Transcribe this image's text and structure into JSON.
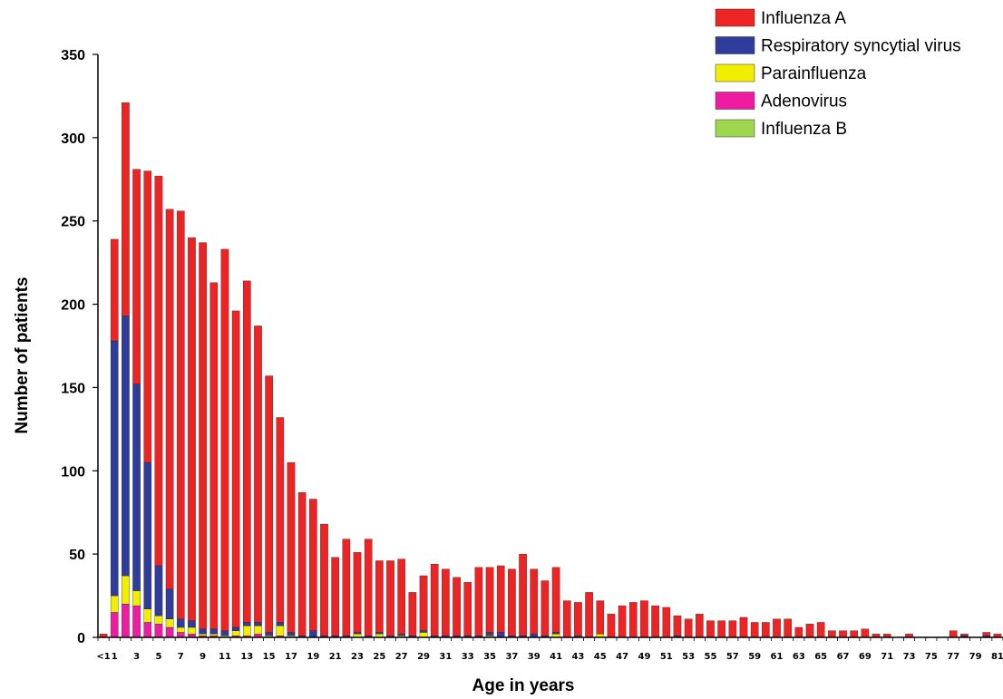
{
  "chart_data": {
    "type": "bar",
    "stacked": true,
    "title": "",
    "xlabel": "Age in years",
    "ylabel": "Number of patients",
    "ylim": [
      0,
      350
    ],
    "yticks": [
      "0",
      "50",
      "100",
      "150",
      "200",
      "250",
      "300",
      "350"
    ],
    "legend_position": "top-right",
    "categories": [
      "<1",
      "1",
      "2",
      "3",
      "4",
      "5",
      "6",
      "7",
      "8",
      "9",
      "10",
      "11",
      "12",
      "13",
      "14",
      "15",
      "16",
      "17",
      "18",
      "19",
      "20",
      "21",
      "22",
      "23",
      "24",
      "25",
      "26",
      "27",
      "28",
      "29",
      "30",
      "31",
      "32",
      "33",
      "34",
      "35",
      "36",
      "37",
      "38",
      "39",
      "40",
      "41",
      "42",
      "43",
      "44",
      "45",
      "46",
      "47",
      "48",
      "49",
      "50",
      "51",
      "52",
      "53",
      "54",
      "55",
      "56",
      "57",
      "58",
      "59",
      "60",
      "61",
      "62",
      "63",
      "64",
      "65",
      "66",
      "67",
      "68",
      "69",
      "70",
      "71",
      "72",
      "73",
      "74",
      "75",
      "76",
      "77",
      "78",
      "79",
      "80",
      "81"
    ],
    "x_tick_labels": [
      "<1",
      "1",
      "3",
      "5",
      "7",
      "9",
      "11",
      "13",
      "15",
      "17",
      "19",
      "21",
      "23",
      "25",
      "27",
      "29",
      "31",
      "33",
      "35",
      "37",
      "39",
      "41",
      "43",
      "45",
      "47",
      "49",
      "51",
      "53",
      "55",
      "57",
      "59",
      "61",
      "63",
      "65",
      "67",
      "69",
      "71",
      "73",
      "75",
      "77",
      "79",
      "81"
    ],
    "series": [
      {
        "name": "Adenovirus",
        "color": "#ee1ca1",
        "values": [
          0,
          15,
          20,
          19,
          9,
          8,
          6,
          3,
          2,
          1,
          1,
          0,
          1,
          1,
          2,
          0,
          1,
          0,
          0,
          0,
          0,
          0,
          0,
          0,
          0,
          0,
          0,
          0,
          0,
          0,
          0,
          0,
          0,
          0,
          0,
          0,
          0,
          0,
          0,
          0,
          0,
          0,
          0,
          0,
          0,
          0,
          0,
          0,
          0,
          0,
          0,
          0,
          0,
          0,
          0,
          0,
          0,
          0,
          0,
          0,
          0,
          0,
          0,
          0,
          0,
          0,
          0,
          0,
          0,
          0,
          0,
          0,
          0,
          0,
          0,
          0,
          0,
          0,
          0,
          0,
          0,
          0
        ]
      },
      {
        "name": "Parainfluenza",
        "color": "#f2ee00",
        "values": [
          0,
          10,
          17,
          9,
          8,
          5,
          5,
          3,
          4,
          1,
          1,
          1,
          3,
          6,
          5,
          1,
          6,
          1,
          0,
          0,
          0,
          0,
          0,
          2,
          0,
          2,
          0,
          1,
          0,
          3,
          0,
          0,
          0,
          0,
          0,
          1,
          0,
          0,
          0,
          0,
          0,
          2,
          0,
          0,
          0,
          2,
          0,
          0,
          0,
          0,
          0,
          0,
          0,
          0,
          0,
          0,
          0,
          0,
          0,
          0,
          0,
          0,
          0,
          0,
          0,
          0,
          0,
          0,
          0,
          0,
          0,
          0,
          0,
          0,
          0,
          0,
          0,
          0,
          0,
          0,
          0,
          0
        ]
      },
      {
        "name": "Respiratory syncytial virus",
        "color": "#2e3c9c",
        "values": [
          0,
          153,
          156,
          124,
          88,
          30,
          18,
          5,
          4,
          3,
          3,
          3,
          2,
          2,
          2,
          2,
          2,
          2,
          1,
          4,
          1,
          1,
          1,
          1,
          1,
          1,
          1,
          1,
          1,
          1,
          1,
          1,
          1,
          1,
          1,
          2,
          3,
          1,
          1,
          2,
          1,
          1,
          0,
          1,
          0,
          0,
          0,
          0,
          0,
          0,
          0,
          0,
          1,
          0,
          0,
          0,
          0,
          0,
          0,
          0,
          0,
          0,
          0,
          0,
          0,
          0,
          0,
          0,
          0,
          0,
          0,
          0,
          0,
          0,
          0,
          0,
          0,
          0,
          1,
          0,
          1,
          0
        ]
      },
      {
        "name": "Influenza B",
        "color": "#9ed64e",
        "values": [
          0,
          0,
          0,
          0,
          0,
          0,
          0,
          0,
          0,
          0,
          0,
          0,
          0,
          0,
          0,
          0,
          0,
          0,
          0,
          0,
          0,
          0,
          0,
          0,
          0,
          0,
          0,
          0,
          0,
          0,
          0,
          0,
          0,
          0,
          0,
          0,
          0,
          0,
          0,
          0,
          0,
          0,
          0,
          0,
          0,
          0,
          0,
          0,
          0,
          0,
          0,
          0,
          0,
          0,
          0,
          0,
          0,
          0,
          0,
          0,
          0,
          0,
          0,
          0,
          0,
          0,
          0,
          0,
          0,
          0,
          0,
          0,
          0,
          0,
          0,
          0,
          0,
          0,
          0,
          0,
          0,
          0
        ]
      },
      {
        "name": "Influenza A",
        "color": "#ee2324",
        "values": [
          2,
          61,
          128,
          129,
          175,
          234,
          228,
          245,
          230,
          232,
          208,
          229,
          190,
          205,
          178,
          154,
          123,
          102,
          86,
          79,
          67,
          47,
          58,
          48,
          58,
          43,
          45,
          45,
          26,
          33,
          43,
          40,
          35,
          32,
          41,
          39,
          40,
          40,
          49,
          39,
          33,
          39,
          22,
          20,
          27,
          20,
          14,
          19,
          21,
          22,
          19,
          18,
          12,
          11,
          14,
          10,
          10,
          10,
          12,
          9,
          9,
          11,
          11,
          6,
          8,
          9,
          4,
          4,
          4,
          5,
          2,
          2,
          0,
          2,
          0,
          0,
          0,
          4,
          1,
          0,
          2,
          2
        ]
      }
    ],
    "legend_order": [
      "Influenza A",
      "Respiratory syncytial virus",
      "Parainfluenza",
      "Adenovirus",
      "Influenza B"
    ],
    "grid": false
  }
}
